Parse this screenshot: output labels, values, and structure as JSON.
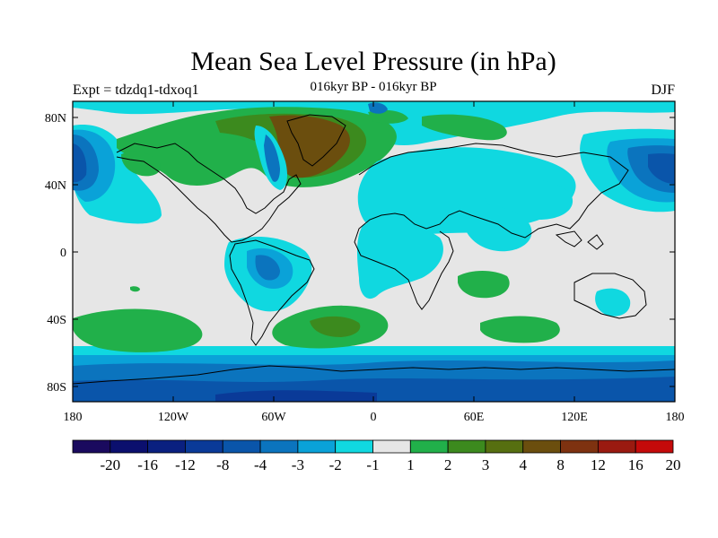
{
  "header": {
    "title": "Mean Sea Level Pressure (in hPa)",
    "subtitle": "016kyr BP - 016kyr BP",
    "left_label": "Expt = tdzdq1-tdxoq1",
    "right_label": "DJF"
  },
  "axes": {
    "lat_labels": [
      "80N",
      "40N",
      "0",
      "40S",
      "80S"
    ],
    "lon_labels": [
      "180",
      "120W",
      "60W",
      "0",
      "60E",
      "120E",
      "180"
    ]
  },
  "colorbar": {
    "labels": [
      "-20",
      "-16",
      "-12",
      "-8",
      "-4",
      "-3",
      "-2",
      "-1",
      "1",
      "2",
      "3",
      "4",
      "8",
      "12",
      "16",
      "20"
    ],
    "colors": [
      "#1a0a5e",
      "#0b0f6e",
      "#0a2080",
      "#0a3a98",
      "#0a55aa",
      "#0b74be",
      "#0aa2d8",
      "#10d8e0",
      "#e6e6e6",
      "#21b04a",
      "#3c8a1e",
      "#566f10",
      "#6b4e0e",
      "#7e3210",
      "#9a1a10",
      "#c40a0a"
    ]
  },
  "map_colors": {
    "background": "#e6e6e6",
    "coast": "#000000"
  }
}
